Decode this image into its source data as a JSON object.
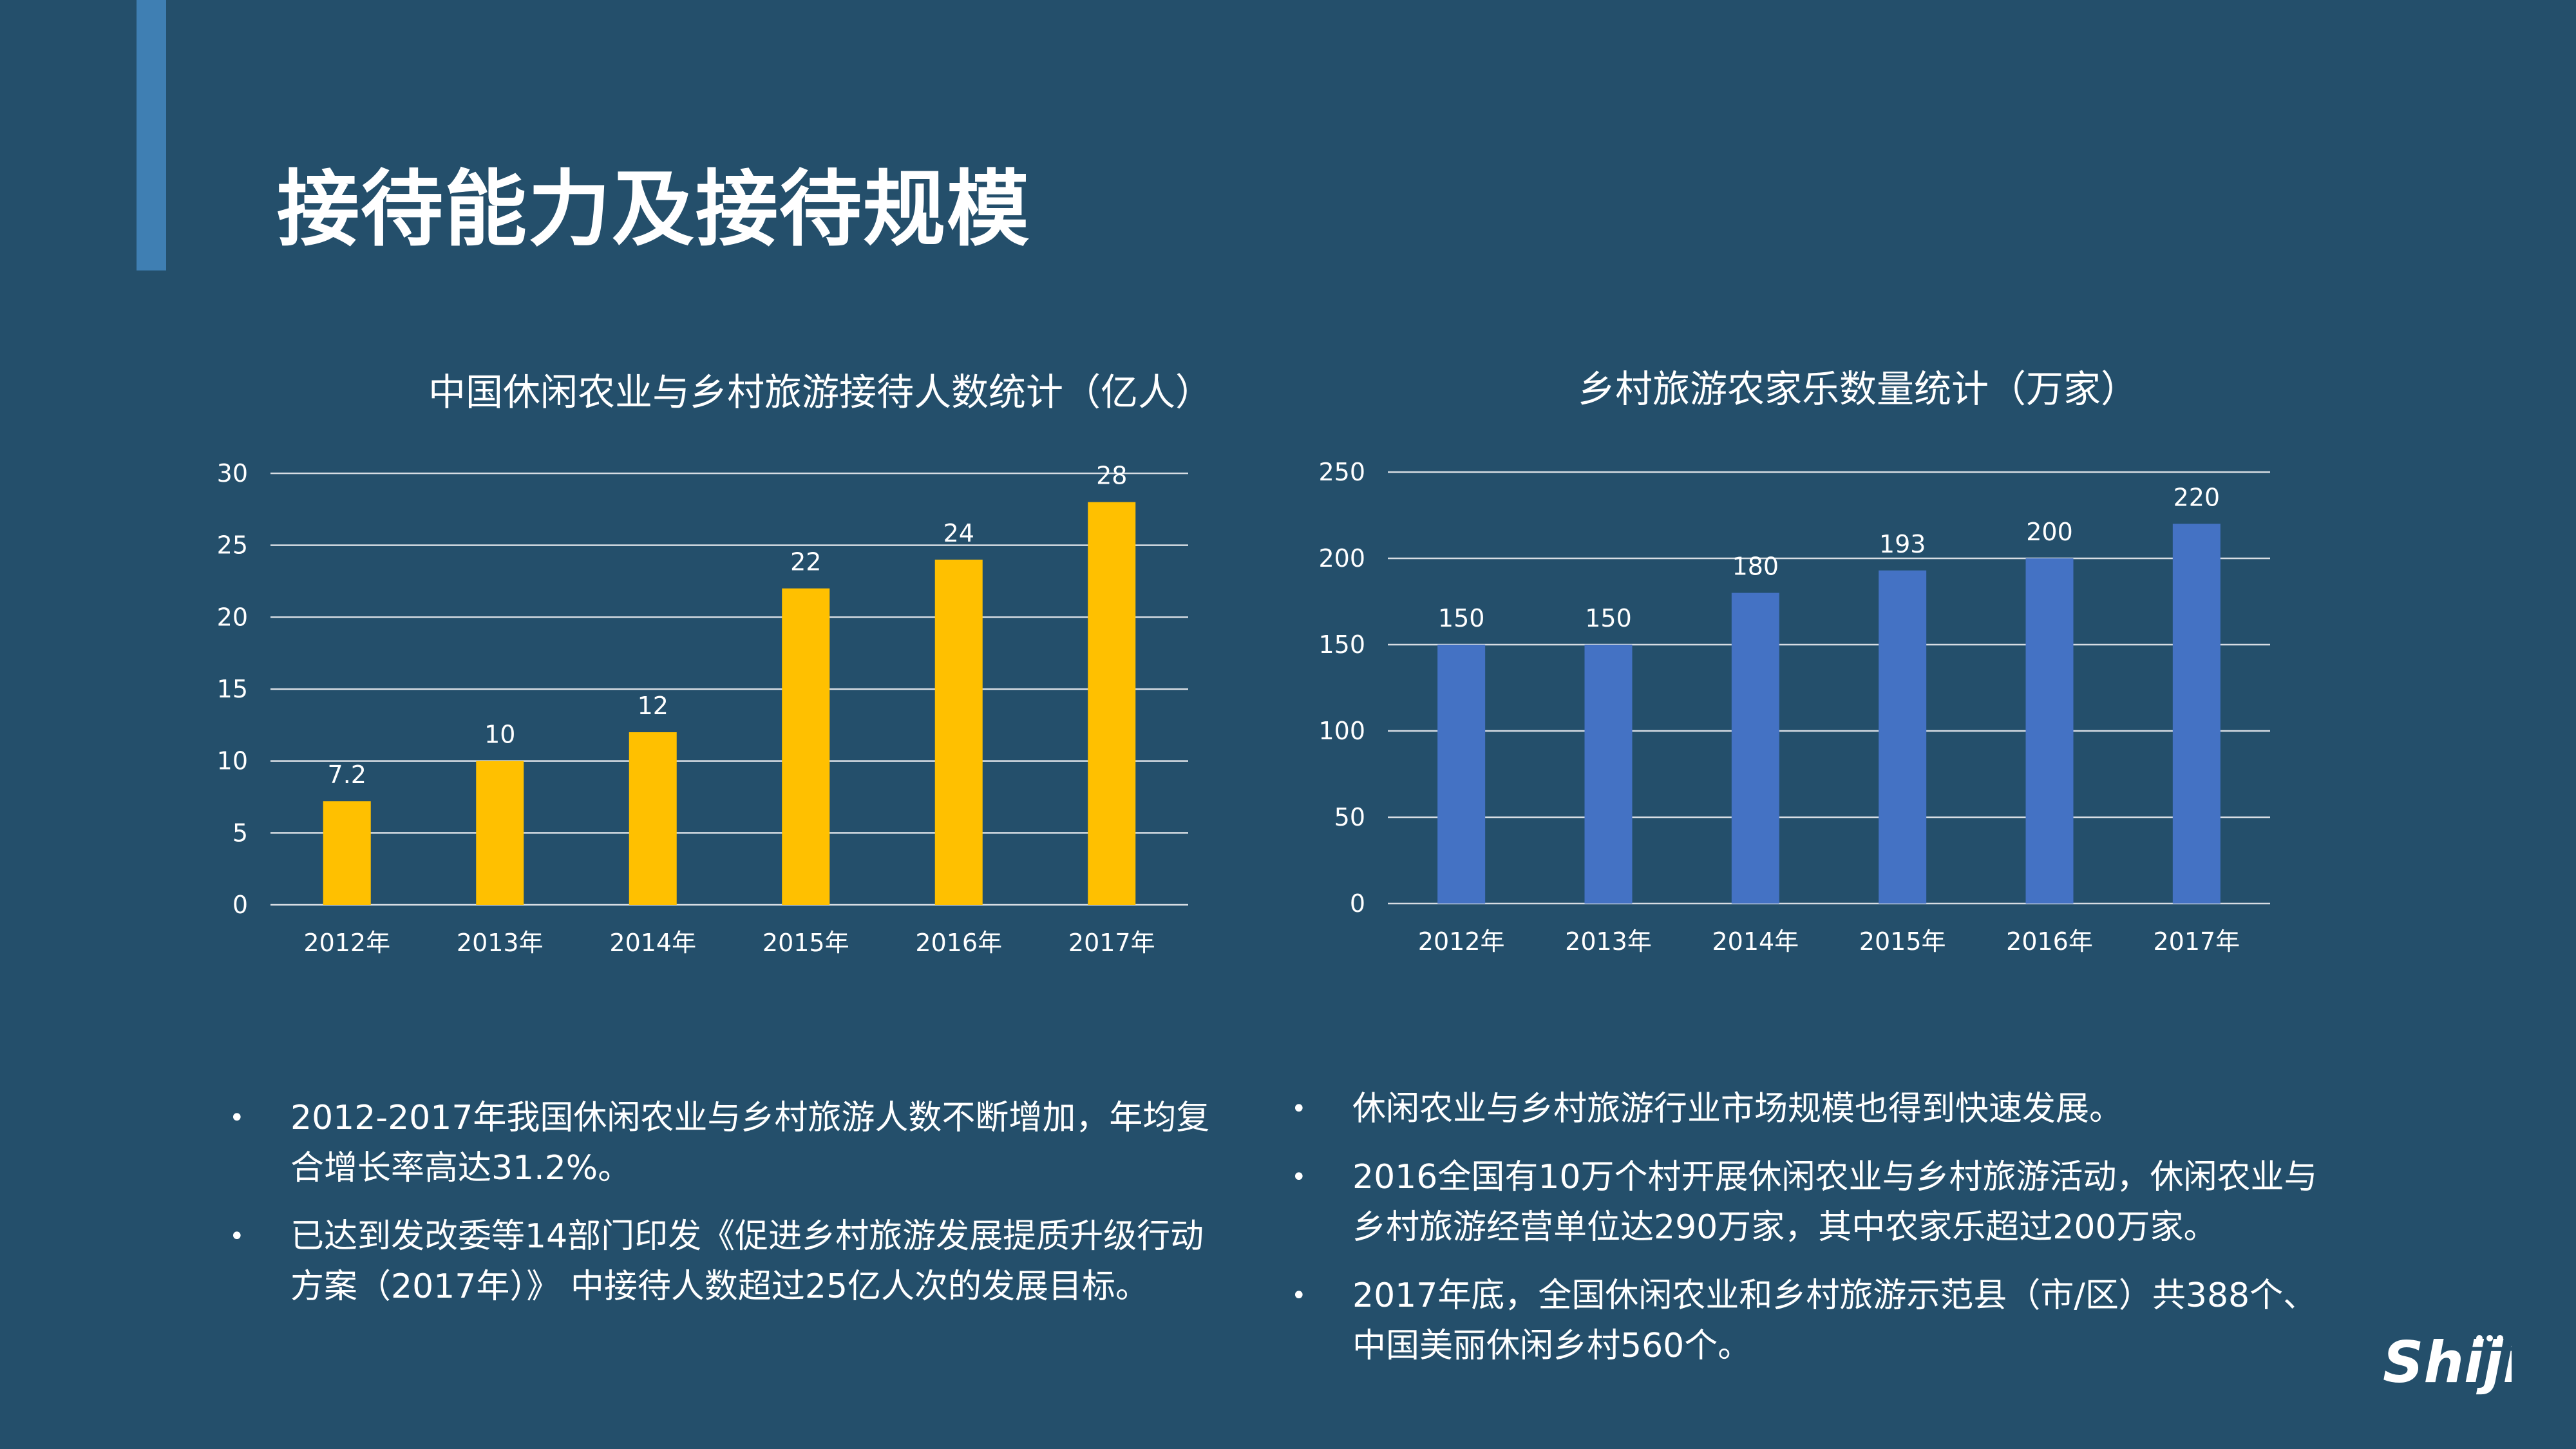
{
  "slide": {
    "title": "接待能力及接待规模",
    "logo_text": "Shiji"
  },
  "colors": {
    "background": "#244f6b",
    "accent_bar": "#3f7fb3",
    "chart1_bar": "#ffc000",
    "chart2_bar": "#4472c4"
  },
  "chart_data": [
    {
      "type": "bar",
      "title": "中国休闲农业与乡村旅游接待人数统计（亿人）",
      "categories": [
        "2012年",
        "2013年",
        "2014年",
        "2015年",
        "2016年",
        "2017年"
      ],
      "values": [
        7.2,
        10,
        12,
        22,
        24,
        28
      ],
      "value_labels": [
        "7.2",
        "10",
        "12",
        "22",
        "24",
        "28"
      ],
      "yticks": [
        "0",
        "5",
        "10",
        "15",
        "20",
        "25",
        "30"
      ],
      "ylim": [
        0,
        30
      ],
      "grid": true,
      "color": "#ffc000"
    },
    {
      "type": "bar",
      "title": "乡村旅游农家乐数量统计（万家）",
      "categories": [
        "2012年",
        "2013年",
        "2014年",
        "2015年",
        "2016年",
        "2017年"
      ],
      "values": [
        150,
        150,
        180,
        193,
        200,
        220
      ],
      "value_labels": [
        "150",
        "150",
        "180",
        "193",
        "200",
        "220"
      ],
      "yticks": [
        "0",
        "50",
        "100",
        "150",
        "200",
        "250"
      ],
      "ylim": [
        0,
        250
      ],
      "grid": true,
      "color": "#4472c4"
    }
  ],
  "bullets_left": [
    "2012-2017年我国休闲农业与乡村旅游人数不断增加，年均复合增长率高达31.2%。",
    "已达到发改委等14部门印发《促进乡村旅游发展提质升级行动方案（2017年）》 中接待人数超过25亿人次的发展目标。"
  ],
  "bullets_right": [
    "休闲农业与乡村旅游行业市场规模也得到快速发展。",
    "2016全国有10万个村开展休闲农业与乡村旅游活动，休闲农业与乡村旅游经营单位达290万家，其中农家乐超过200万家。",
    "2017年底，全国休闲农业和乡村旅游示范县（市/区）共388个、中国美丽休闲乡村560个。"
  ],
  "bullet_symbol": "•"
}
